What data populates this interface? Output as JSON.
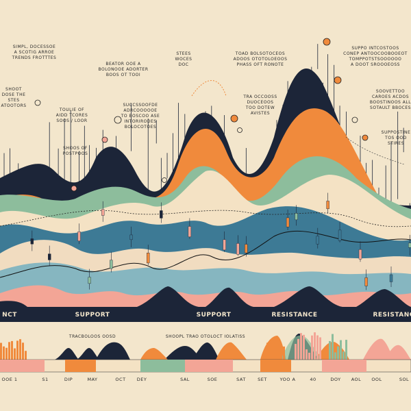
{
  "annotations": [
    {
      "lines": [
        "SIMPL, DOCESSOE",
        "A SCOTIG ARROE",
        "TRENDS FROTTTES"
      ]
    },
    {
      "lines": [
        "BEATOR OOE A",
        "BOLONOOE ADORTER",
        "BOOS OT TOOI"
      ]
    },
    {
      "lines": [
        "STEES",
        "WOCES",
        "DOC"
      ]
    },
    {
      "lines": [
        "TOAD BOLSOTOCEOS",
        "ADOOS OTOTOLOEOOS",
        "PHASS OFT RONOTE"
      ]
    },
    {
      "lines": [
        "SUPPO INTCOSTOOS",
        "CONEP ANTOOCOOBOOEOT",
        "TOMPPOTSTSOOOOOO",
        "A DOOT SROOOEOSS"
      ]
    },
    {
      "lines": [
        "SHOOT",
        "DOSE THE",
        "STES",
        "ATOOTORS"
      ]
    },
    {
      "lines": [
        "TOULIE OF",
        "AIDD TCORES",
        "SOOS / LOOR"
      ]
    },
    {
      "lines": [
        "SUCCSSOOFDE",
        "ADRCOOOOOE",
        "TO BOSCOO ASE",
        "INTORIRODES",
        "BOLOCOTOES"
      ]
    },
    {
      "lines": [
        "TRA OCCOOSS",
        "DUOCEOOS",
        "TOO DOTEW",
        "AVISTES"
      ]
    },
    {
      "lines": [
        "SOOVETTOO",
        "CAROES ACDOS",
        "BOOSTINOOS ALL",
        "SOTAULT BBOCES"
      ]
    },
    {
      "lines": [
        "SHOOS OF",
        "POSTPOOS"
      ]
    },
    {
      "lines": [
        "SUPPOSTINE",
        "TOS OOD",
        "STIRES"
      ]
    }
  ],
  "band_labels": [
    "NCT",
    "SUPPORT",
    "SUPPORT",
    "RESISTANCE",
    "RESISTANCE"
  ],
  "bottom_notes": [
    "TRACBOLOOS OOSD",
    "SHOOPL TRAO OTOLOCT IOLATISS"
  ],
  "axis_labels": [
    "OOE 1",
    "S1",
    "DIP",
    "MAY",
    "OCT",
    "DEY",
    "SAL",
    "SOE",
    "SAT",
    "SET",
    "YOO A",
    "40",
    "DOY",
    "AOL",
    "OOL",
    "SOL"
  ]
}
